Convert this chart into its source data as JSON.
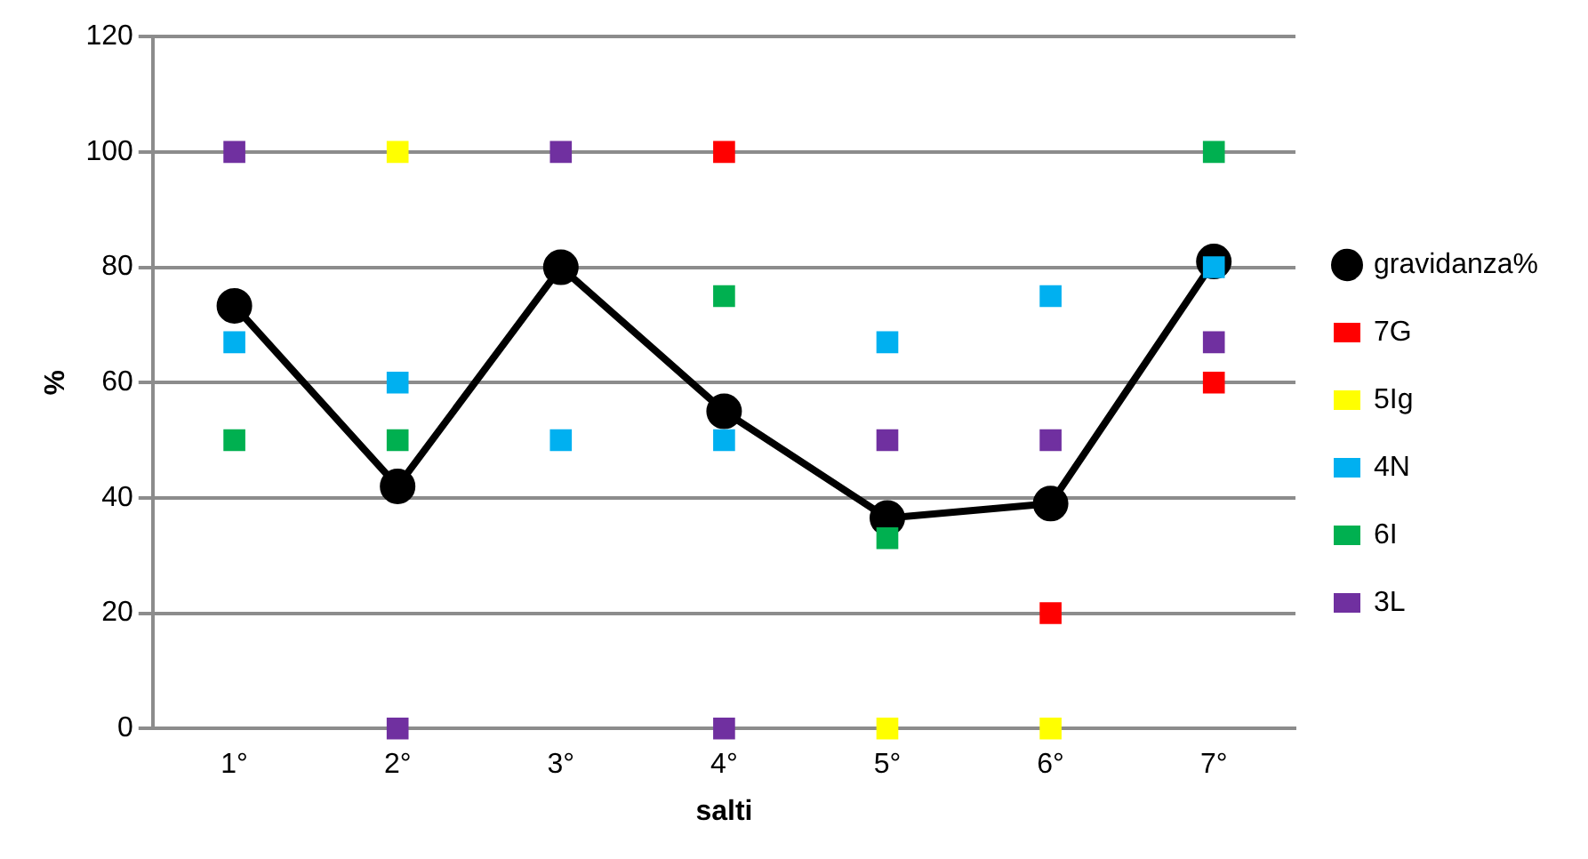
{
  "chart_data": {
    "type": "scatter",
    "xlabel": "salti",
    "ylabel": "%",
    "categories": [
      "1°",
      "2°",
      "3°",
      "4°",
      "5°",
      "6°",
      "7°"
    ],
    "ylim": [
      0,
      120
    ],
    "yticks": [
      0,
      20,
      40,
      60,
      80,
      100,
      120
    ],
    "grid": "y",
    "legend": "right",
    "marker": "square",
    "series": [
      {
        "name": "gravidanza%",
        "type": "line",
        "marker": "circle",
        "line_style": "solid",
        "color": "#000000",
        "values": [
          73.3,
          42,
          80,
          55,
          36.5,
          39,
          81
        ]
      },
      {
        "name": "7G",
        "color": "#ff0000",
        "values": [
          null,
          null,
          null,
          100,
          null,
          20,
          60
        ]
      },
      {
        "name": "5Ig",
        "color": "#ffff00",
        "values": [
          null,
          100,
          null,
          null,
          0,
          0,
          null
        ]
      },
      {
        "name": "4N",
        "color": "#00b0f0",
        "values": [
          67,
          60,
          50,
          50,
          67,
          75,
          80
        ]
      },
      {
        "name": "6I",
        "color": "#00b050",
        "values": [
          50,
          50,
          null,
          75,
          33,
          null,
          100
        ]
      },
      {
        "name": "3L",
        "color": "#7030a0",
        "values": [
          100,
          0,
          100,
          0,
          50,
          50,
          67
        ]
      }
    ]
  }
}
